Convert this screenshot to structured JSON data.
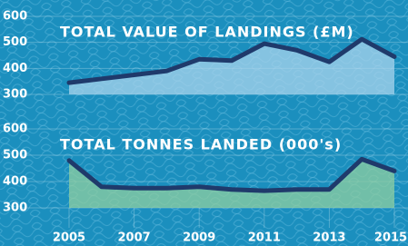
{
  "chart_data": [
    {
      "type": "area",
      "title": "TOTAL VALUE OF LANDINGS (£M)",
      "x": [
        2005,
        2006,
        2007,
        2008,
        2009,
        2010,
        2011,
        2012,
        2013,
        2014,
        2015
      ],
      "values": [
        345,
        360,
        375,
        390,
        435,
        430,
        495,
        470,
        425,
        512,
        445
      ],
      "color": "#1f3a6b",
      "fill_color": "#a9d4ec",
      "xlim": [
        2005,
        2015
      ],
      "ylim": [
        300,
        600
      ],
      "yticks": [
        300,
        400,
        500,
        600
      ],
      "grid": true
    },
    {
      "type": "area",
      "title": "TOTAL TONNES LANDED (000's)",
      "x": [
        2005,
        2006,
        2007,
        2008,
        2009,
        2010,
        2011,
        2012,
        2013,
        2014,
        2015
      ],
      "values": [
        480,
        380,
        375,
        375,
        380,
        370,
        365,
        370,
        370,
        485,
        440
      ],
      "color": "#1f3a6b",
      "fill_color": "#8fcfa0",
      "xlim": [
        2005,
        2015
      ],
      "ylim": [
        300,
        600
      ],
      "yticks": [
        300,
        400,
        500,
        600
      ],
      "xticks": [
        2005,
        2007,
        2009,
        2011,
        2013,
        2015
      ],
      "grid": true
    }
  ]
}
